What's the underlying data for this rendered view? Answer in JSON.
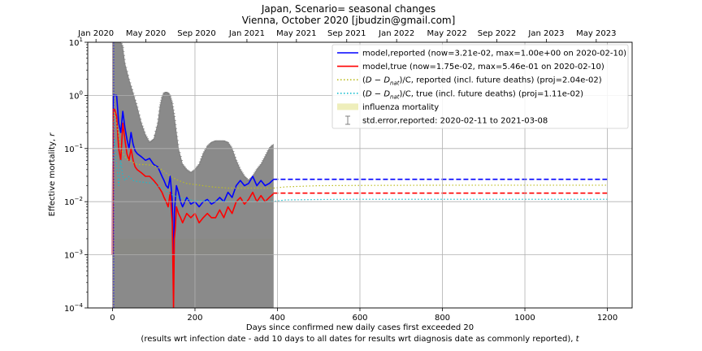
{
  "chart_data": {
    "type": "line",
    "title": "Japan, Scenario= seasonal changes",
    "subtitle": "Vienna, October 2020 [jbudzin@gmail.com]",
    "xlabel_line1": "Days since confirmed new daily cases first exceeded 20",
    "xlabel_line2": "(results wrt infection date - add 10 days to all dates for results wrt diagnosis date as commonly reported), ",
    "xlabel_t": "t",
    "ylabel": "Effective mortality, ",
    "ylabel_r": "r",
    "xlim": [
      -60,
      1260
    ],
    "ylim": [
      0.0001,
      10
    ],
    "yscale": "log",
    "grid": true,
    "x_ticks": [
      0,
      200,
      400,
      600,
      800,
      1000,
      1200
    ],
    "x_tick_labels": [
      "0",
      "200",
      "400",
      "600",
      "800",
      "1000",
      "1200"
    ],
    "y_ticks": [
      0.0001,
      0.001,
      0.01,
      0.1,
      1,
      10
    ],
    "y_tick_labels": [
      {
        "base": "10",
        "exp": "−4"
      },
      {
        "base": "10",
        "exp": "−3"
      },
      {
        "base": "10",
        "exp": "−2"
      },
      {
        "base": "10",
        "exp": "−1"
      },
      {
        "base": "10",
        "exp": "0"
      },
      {
        "base": "10",
        "exp": "1"
      }
    ],
    "top_axis_ticks": [
      -40,
      81,
      204,
      326,
      446,
      568,
      689,
      811,
      932,
      1052,
      1173
    ],
    "top_axis_labels": [
      "Jan 2020",
      "May 2020",
      "Sep 2020",
      "Jan 2021",
      "May 2021",
      "Sep 2021",
      "Jan 2022",
      "May 2022",
      "Sep 2022",
      "Jan 2023",
      "May 2023"
    ],
    "legend_position": "top-right",
    "legend": [
      {
        "label": "model,reported (now=3.21e-02, max=1.00e+00 on 2020-02-10)",
        "style": "solid",
        "color": "#0000ff"
      },
      {
        "label": "model,true (now=1.75e-02, max=5.46e-01 on 2020-02-10)",
        "style": "solid",
        "color": "#ff0000"
      },
      {
        "label_pre": "(",
        "label_math": "D − D",
        "label_sub": "nat",
        "label_post": ")/C, reported (incl. future deaths) (proj=2.04e-02)",
        "style": "dotted",
        "color": "#bcbd22"
      },
      {
        "label_pre": "(",
        "label_math": "D − D",
        "label_sub": "nat",
        "label_post": ")/C, true (incl. future deaths) (proj=1.11e-02)",
        "style": "dotted",
        "color": "#17becf"
      },
      {
        "label": "influenza mortality",
        "style": "patch",
        "color": "#eeeebb"
      },
      {
        "label": "std.error,reported: 2020-02-11 to 2021-03-08",
        "style": "errorbar",
        "color": "#808080"
      }
    ],
    "influenza_band": {
      "x": [
        0,
        390
      ],
      "y": [
        0.001,
        0.002
      ]
    },
    "error_envelope": {
      "x": [
        0,
        5,
        10,
        15,
        20,
        25,
        30,
        40,
        50,
        60,
        70,
        80,
        90,
        100,
        110,
        115,
        120,
        125,
        130,
        135,
        140,
        145,
        150,
        155,
        160,
        170,
        180,
        190,
        200,
        210,
        220,
        230,
        240,
        250,
        260,
        270,
        280,
        290,
        300,
        310,
        320,
        330,
        340,
        350,
        360,
        370,
        380,
        390
      ],
      "upper": [
        10,
        10,
        10,
        10,
        10,
        8,
        4,
        2,
        1.1,
        0.6,
        0.3,
        0.18,
        0.13,
        0.15,
        0.3,
        0.6,
        0.9,
        1.1,
        1.15,
        1.1,
        0.95,
        0.7,
        0.4,
        0.2,
        0.1,
        0.05,
        0.04,
        0.035,
        0.04,
        0.05,
        0.08,
        0.11,
        0.13,
        0.14,
        0.14,
        0.14,
        0.13,
        0.1,
        0.06,
        0.04,
        0.03,
        0.025,
        0.03,
        0.04,
        0.05,
        0.07,
        0.1,
        0.12
      ],
      "lower": [
        0.0001,
        0.0001,
        0.0001,
        0.0001,
        0.0001,
        0.0001,
        0.0001,
        0.0001,
        0.0001,
        0.0001,
        0.0001,
        0.0001,
        0.0001,
        0.0001,
        0.0001,
        0.0001,
        0.0001,
        0.0001,
        0.0001,
        0.0001,
        0.0001,
        0.0001,
        0.0001,
        0.0001,
        0.0001,
        0.0001,
        0.0001,
        0.0001,
        0.0001,
        0.0001,
        0.0001,
        0.0001,
        0.0001,
        0.0001,
        0.0001,
        0.0001,
        0.0001,
        0.0001,
        0.0001,
        0.0001,
        0.0001,
        0.0001,
        0.0001,
        0.0001,
        0.0001,
        0.0001,
        0.0001,
        0.0001
      ]
    },
    "series": [
      {
        "name": "model,reported",
        "color": "#0000ff",
        "style": "solid",
        "x": [
          0,
          1,
          2,
          5,
          10,
          15,
          20,
          25,
          30,
          35,
          40,
          45,
          50,
          55,
          60,
          70,
          80,
          90,
          100,
          110,
          120,
          125,
          130,
          135,
          140,
          145,
          148,
          150,
          152,
          155,
          160,
          165,
          170,
          180,
          190,
          200,
          210,
          220,
          230,
          240,
          250,
          260,
          270,
          280,
          290,
          300,
          310,
          320,
          330,
          340,
          350,
          360,
          370,
          380,
          390
        ],
        "y": [
          0.001,
          0.5,
          1.0,
          1.0,
          1.0,
          0.3,
          0.2,
          0.5,
          0.25,
          0.15,
          0.1,
          0.2,
          0.12,
          0.09,
          0.08,
          0.07,
          0.06,
          0.065,
          0.05,
          0.045,
          0.03,
          0.025,
          0.02,
          0.018,
          0.03,
          0.01,
          0.0003,
          0.006,
          0.01,
          0.02,
          0.015,
          0.01,
          0.008,
          0.012,
          0.009,
          0.01,
          0.008,
          0.01,
          0.011,
          0.009,
          0.01,
          0.012,
          0.01,
          0.015,
          0.012,
          0.02,
          0.025,
          0.02,
          0.022,
          0.03,
          0.02,
          0.025,
          0.02,
          0.022,
          0.026
        ]
      },
      {
        "name": "model,reported (projection)",
        "color": "#0000ff",
        "style": "dashed",
        "x": [
          390,
          1200
        ],
        "y": [
          0.0263,
          0.0263
        ]
      },
      {
        "name": "model,true",
        "color": "#ff0000",
        "style": "solid",
        "x": [
          0,
          1,
          2,
          5,
          10,
          15,
          20,
          25,
          30,
          35,
          40,
          45,
          50,
          55,
          60,
          70,
          80,
          90,
          100,
          110,
          120,
          125,
          130,
          135,
          140,
          145,
          148,
          150,
          152,
          155,
          160,
          165,
          170,
          180,
          190,
          200,
          210,
          220,
          230,
          240,
          250,
          260,
          270,
          280,
          290,
          300,
          310,
          320,
          330,
          340,
          350,
          360,
          370,
          380,
          390
        ],
        "y": [
          0.001,
          0.3,
          0.546,
          0.546,
          0.4,
          0.1,
          0.06,
          0.3,
          0.15,
          0.08,
          0.06,
          0.1,
          0.06,
          0.045,
          0.04,
          0.035,
          0.03,
          0.03,
          0.025,
          0.02,
          0.015,
          0.012,
          0.01,
          0.008,
          0.015,
          0.004,
          0.0001,
          0.002,
          0.003,
          0.008,
          0.006,
          0.005,
          0.004,
          0.006,
          0.005,
          0.006,
          0.004,
          0.005,
          0.006,
          0.005,
          0.005,
          0.007,
          0.005,
          0.008,
          0.006,
          0.01,
          0.012,
          0.009,
          0.011,
          0.015,
          0.01,
          0.013,
          0.01,
          0.012,
          0.014
        ]
      },
      {
        "name": "model,true (projection)",
        "color": "#ff0000",
        "style": "dashed",
        "x": [
          390,
          1200
        ],
        "y": [
          0.0145,
          0.0145
        ]
      },
      {
        "name": "(D-Dnat)/C, reported",
        "color": "#bcbd22",
        "style": "dotted",
        "x": [
          0,
          5,
          10,
          20,
          30,
          40,
          50,
          60,
          80,
          100,
          120,
          140,
          160,
          180,
          200,
          240,
          280,
          320,
          360,
          390,
          420,
          500,
          600,
          800,
          1000,
          1200
        ],
        "y": [
          0.2,
          0.5,
          0.3,
          0.1,
          0.07,
          0.06,
          0.055,
          0.05,
          0.05,
          0.048,
          0.04,
          0.03,
          0.025,
          0.022,
          0.021,
          0.019,
          0.018,
          0.018,
          0.018,
          0.018,
          0.019,
          0.02,
          0.0202,
          0.0204,
          0.0204,
          0.0204
        ]
      },
      {
        "name": "(D-Dnat)/C, true",
        "color": "#17becf",
        "style": "dotted",
        "x": [
          0,
          5,
          10,
          15,
          20,
          25,
          30,
          40,
          50,
          60,
          80,
          100,
          120,
          140,
          160,
          180,
          200,
          240,
          280,
          320,
          360,
          390,
          420,
          500,
          600,
          800,
          1000,
          1200
        ],
        "y": [
          0.05,
          0.15,
          0.05,
          0.02,
          0.06,
          0.03,
          0.025,
          0.03,
          0.025,
          0.024,
          0.023,
          0.022,
          0.018,
          0.014,
          0.012,
          0.011,
          0.0105,
          0.0103,
          0.0102,
          0.0101,
          0.0102,
          0.0101,
          0.0108,
          0.011,
          0.0111,
          0.0111,
          0.0111,
          0.0111
        ]
      }
    ]
  }
}
